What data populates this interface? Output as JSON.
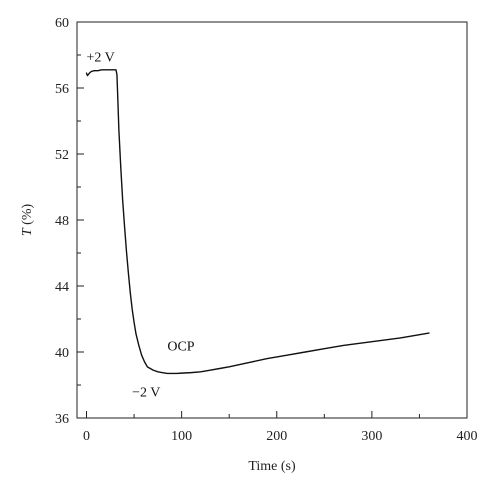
{
  "chart_data": {
    "type": "line",
    "title": "",
    "xlabel": "Time (s)",
    "ylabel_symbol": "T",
    "ylabel_unit": " (%)",
    "xlim": [
      -10,
      400
    ],
    "ylim": [
      36,
      60
    ],
    "x_ticks": [
      0,
      100,
      200,
      300,
      400
    ],
    "y_ticks": [
      36,
      40,
      44,
      48,
      52,
      56,
      60
    ],
    "x_minor_step": 50,
    "y_minor_step": 2,
    "grid": false,
    "legend": "none",
    "line_color": "#111111",
    "series": [
      {
        "x": [
          0,
          1,
          3,
          5,
          8,
          12,
          16,
          20,
          24,
          28,
          31,
          32,
          33,
          34,
          36,
          38,
          40,
          42,
          44,
          46,
          48,
          50,
          52,
          55,
          58,
          61,
          64,
          67,
          70,
          75,
          80,
          85,
          90,
          95,
          100,
          110,
          120,
          130,
          140,
          150,
          170,
          190,
          210,
          230,
          250,
          270,
          290,
          310,
          330,
          350,
          360
        ],
        "y": [
          56.9,
          56.75,
          56.9,
          57.0,
          57.05,
          57.05,
          57.1,
          57.1,
          57.1,
          57.1,
          57.1,
          56.8,
          55.2,
          53.5,
          51.2,
          49.2,
          47.6,
          46.1,
          44.8,
          43.6,
          42.6,
          41.8,
          41.1,
          40.4,
          39.8,
          39.4,
          39.1,
          39.0,
          38.9,
          38.8,
          38.75,
          38.7,
          38.7,
          38.7,
          38.72,
          38.75,
          38.8,
          38.9,
          39.0,
          39.1,
          39.35,
          39.6,
          39.8,
          40.0,
          40.2,
          40.4,
          40.55,
          40.7,
          40.85,
          41.05,
          41.15
        ]
      }
    ],
    "annotations": [
      {
        "text": "+2 V",
        "x": 0,
        "y": 57.6
      },
      {
        "text": "−2 V",
        "x": 48,
        "y": 37.3
      },
      {
        "text": "OCP",
        "x": 85,
        "y": 40.1
      }
    ]
  }
}
